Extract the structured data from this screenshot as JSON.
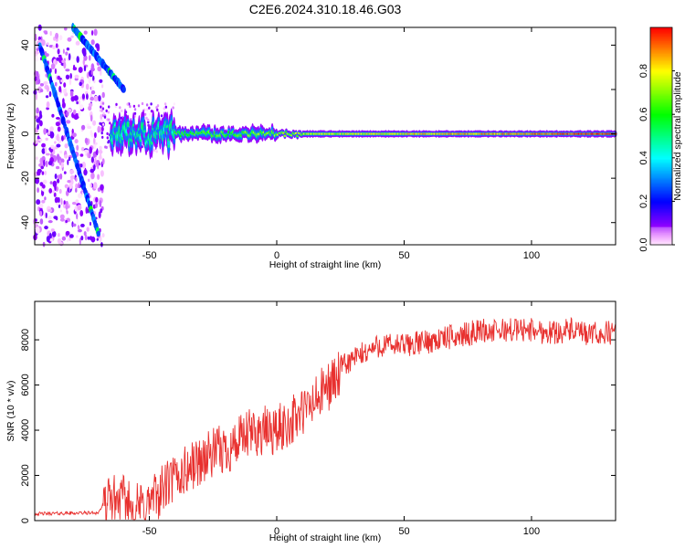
{
  "figure": {
    "title": "C2E6.2024.310.18.46.G03"
  },
  "chart_data": [
    {
      "type": "heatmap",
      "xlabel": "Height of straight line (km)",
      "ylabel": "Frequency (Hz)",
      "xlim": [
        -95,
        133
      ],
      "ylim": [
        -50,
        48
      ],
      "xticks": [
        -50,
        0,
        50,
        100
      ],
      "yticks": [
        -40,
        -20,
        0,
        20,
        40
      ],
      "colorbar": {
        "label": "Normalized spectral amplitude",
        "range": [
          0.0,
          1.0
        ],
        "ticks": [
          0.0,
          0.2,
          0.4,
          0.6,
          0.8
        ]
      },
      "features": {
        "carrier_line": {
          "frequency_hz": 0,
          "from_km": -65,
          "to_km": 133,
          "amplitude": 0.85
        },
        "noise_region": {
          "from_km": -95,
          "to_km": -68,
          "frequency_range_hz": [
            -50,
            48
          ]
        },
        "diagonal_traces": [
          {
            "from": [
              -93,
              40
            ],
            "to": [
              -70,
              -45
            ]
          },
          {
            "from": [
              -80,
              48
            ],
            "to": [
              -60,
              20
            ]
          }
        ]
      }
    },
    {
      "type": "line",
      "xlabel": "Height of straight line (km)",
      "ylabel": "SNR (10 * v/v)",
      "xlim": [
        -95,
        133
      ],
      "ylim": [
        0,
        9700
      ],
      "xticks": [
        -50,
        0,
        50,
        100
      ],
      "yticks": [
        0,
        2000,
        4000,
        6000,
        8000
      ],
      "series": [
        {
          "color": "#e8302e",
          "envelope": {
            "x": [
              -95,
              -70,
              -65,
              -60,
              -55,
              -50,
              -45,
              -40,
              -35,
              -30,
              -25,
              -20,
              -15,
              -10,
              -5,
              0,
              5,
              10,
              15,
              20,
              25,
              30,
              35,
              40,
              45,
              50,
              55,
              60,
              65,
              70,
              75,
              80,
              85,
              90,
              95,
              100,
              105,
              110,
              115,
              120,
              125,
              133
            ],
            "y": [
              300,
              350,
              1300,
              1200,
              900,
              1100,
              1700,
              2200,
              2600,
              3000,
              3300,
              3500,
              3800,
              4200,
              4300,
              4300,
              4700,
              5100,
              5600,
              6300,
              6800,
              7200,
              7500,
              7800,
              7800,
              7800,
              7900,
              8000,
              8100,
              8200,
              8300,
              8500,
              8400,
              8500,
              8500,
              8500,
              8400,
              8400,
              8500,
              8300,
              8300,
              8400
            ]
          }
        }
      ]
    }
  ]
}
